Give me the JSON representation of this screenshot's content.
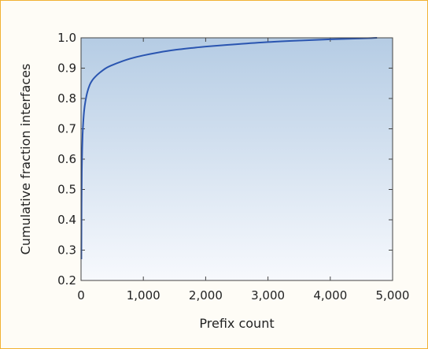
{
  "chart_data": {
    "type": "line",
    "xlabel": "Prefix count",
    "ylabel": "Cumulative fraction interfaces",
    "xlim": [
      0,
      5000
    ],
    "ylim": [
      0.2,
      1.0
    ],
    "xticks": [
      0,
      1000,
      2000,
      3000,
      4000,
      5000
    ],
    "xtick_labels": [
      "0",
      "1,000",
      "2,000",
      "3,000",
      "4,000",
      "5,000"
    ],
    "yticks": [
      0.2,
      0.3,
      0.4,
      0.5,
      0.6,
      0.7,
      0.8,
      0.9,
      1.0
    ],
    "ytick_labels": [
      "0.2",
      "0.3",
      "0.4",
      "0.5",
      "0.6",
      "0.7",
      "0.8",
      "0.9",
      "1.0"
    ],
    "grid": false,
    "legend": "none",
    "series": [
      {
        "color": "#2a55b0",
        "x": [
          5,
          8,
          12,
          18,
          25,
          35,
          50,
          70,
          100,
          140,
          180,
          230,
          300,
          400,
          500,
          650,
          800,
          1000,
          1250,
          1500,
          1800,
          2000,
          2500,
          3000,
          3500,
          4000,
          4500,
          4750
        ],
        "y": [
          0.27,
          0.45,
          0.56,
          0.63,
          0.68,
          0.72,
          0.76,
          0.79,
          0.82,
          0.845,
          0.86,
          0.872,
          0.885,
          0.9,
          0.91,
          0.922,
          0.932,
          0.942,
          0.952,
          0.96,
          0.967,
          0.971,
          0.979,
          0.986,
          0.991,
          0.995,
          0.998,
          1.0
        ]
      }
    ]
  }
}
